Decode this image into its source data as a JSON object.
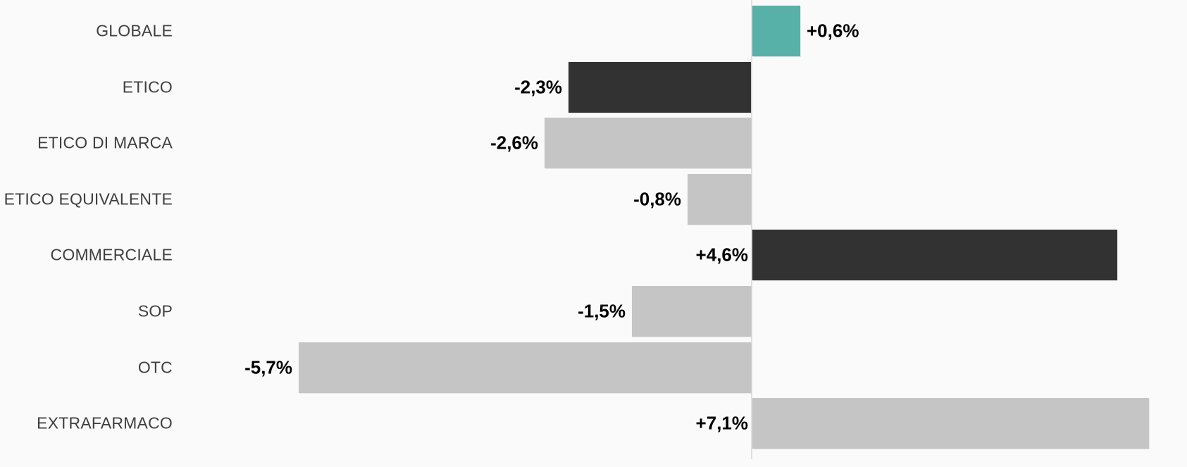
{
  "chart_data": {
    "type": "bar",
    "orientation": "horizontal",
    "title": "",
    "xlabel": "",
    "ylabel": "",
    "categories": [
      "GLOBALE",
      "ETICO",
      "ETICO DI MARCA",
      "ETICO EQUIVALENTE",
      "COMMERCIALE",
      "SOP",
      "OTC",
      "EXTRAFARMACO"
    ],
    "values": [
      0.6,
      -2.3,
      -2.6,
      -0.8,
      4.6,
      -1.5,
      -5.7,
      7.1
    ],
    "value_labels": [
      "+0,6%",
      "-2,3%",
      "-2,6%",
      "-0,8%",
      "+4,6%",
      "-1,5%",
      "-5,7%",
      "+7,1%"
    ],
    "bar_colors": [
      "#57B1A9",
      "#323232",
      "#C5C5C5",
      "#C5C5C5",
      "#323232",
      "#C5C5C5",
      "#C5C5C5",
      "#C5C5C5"
    ],
    "xlim": [
      -5.9,
      5.0
    ],
    "grid": false,
    "legend": false,
    "zero_line_color": "#DFDFDF",
    "background_color": "#FAFAFA",
    "category_label_color": "#3F3F3F",
    "value_label_color": "#000000",
    "notes": "EXTRAFARMACO bar (+7,1%) is clipped at the right edge of the plot area"
  }
}
